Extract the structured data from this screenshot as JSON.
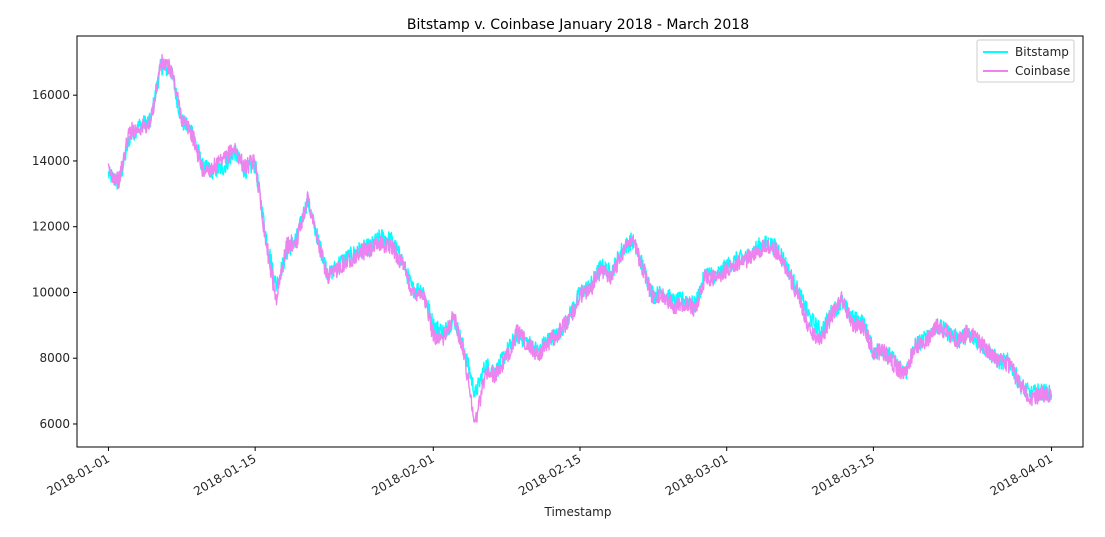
{
  "chart_data": {
    "type": "line",
    "title": "Bitstamp v. Coinbase January 2018 - March 2018",
    "xlabel": "Timestamp",
    "ylabel": "",
    "xlim": [
      "2017-12-29",
      "2018-04-04"
    ],
    "ylim": [
      5300,
      17800
    ],
    "yticks": [
      6000,
      8000,
      10000,
      12000,
      14000,
      16000
    ],
    "xticks": [
      "2018-01-01",
      "2018-01-15",
      "2018-02-01",
      "2018-02-15",
      "2018-03-01",
      "2018-03-15",
      "2018-04-01"
    ],
    "grid": false,
    "legend": "top-right",
    "series": [
      {
        "name": "Bitstamp",
        "color": "#00ffff",
        "x": [
          "2018-01-01",
          "2018-01-02",
          "2018-01-03",
          "2018-01-04",
          "2018-01-05",
          "2018-01-06",
          "2018-01-07",
          "2018-01-08",
          "2018-01-09",
          "2018-01-10",
          "2018-01-11",
          "2018-01-12",
          "2018-01-13",
          "2018-01-14",
          "2018-01-15",
          "2018-01-16",
          "2018-01-17",
          "2018-01-18",
          "2018-01-19",
          "2018-01-20",
          "2018-01-21",
          "2018-01-22",
          "2018-01-23",
          "2018-01-24",
          "2018-01-25",
          "2018-01-26",
          "2018-01-27",
          "2018-01-28",
          "2018-01-29",
          "2018-01-30",
          "2018-01-31",
          "2018-02-01",
          "2018-02-02",
          "2018-02-03",
          "2018-02-04",
          "2018-02-05",
          "2018-02-06",
          "2018-02-07",
          "2018-02-08",
          "2018-02-09",
          "2018-02-10",
          "2018-02-11",
          "2018-02-12",
          "2018-02-13",
          "2018-02-14",
          "2018-02-15",
          "2018-02-16",
          "2018-02-17",
          "2018-02-18",
          "2018-02-19",
          "2018-02-20",
          "2018-02-21",
          "2018-02-22",
          "2018-02-23",
          "2018-02-24",
          "2018-02-25",
          "2018-02-26",
          "2018-02-27",
          "2018-02-28",
          "2018-03-01",
          "2018-03-02",
          "2018-03-03",
          "2018-03-04",
          "2018-03-05",
          "2018-03-06",
          "2018-03-07",
          "2018-03-08",
          "2018-03-09",
          "2018-03-10",
          "2018-03-11",
          "2018-03-12",
          "2018-03-13",
          "2018-03-14",
          "2018-03-15",
          "2018-03-16",
          "2018-03-17",
          "2018-03-18",
          "2018-03-19",
          "2018-03-20",
          "2018-03-21",
          "2018-03-22",
          "2018-03-23",
          "2018-03-24",
          "2018-03-25",
          "2018-03-26",
          "2018-03-27",
          "2018-03-28",
          "2018-03-29",
          "2018-03-30",
          "2018-03-31",
          "2018-04-01"
        ],
        "values": [
          13600,
          13300,
          14700,
          15100,
          15200,
          16900,
          16700,
          15200,
          14900,
          13800,
          13700,
          13800,
          14300,
          13700,
          13900,
          11800,
          10200,
          11200,
          11700,
          12800,
          11600,
          10500,
          10900,
          11100,
          11300,
          11400,
          11700,
          11600,
          11000,
          10100,
          10100,
          9000,
          8800,
          9200,
          8200,
          6900,
          7800,
          7600,
          8200,
          8700,
          8500,
          8200,
          8600,
          8700,
          9300,
          10000,
          10200,
          10800,
          10600,
          11300,
          11600,
          10800,
          9900,
          10000,
          9700,
          9800,
          9600,
          10600,
          10500,
          10800,
          11000,
          11100,
          11400,
          11500,
          11300,
          10600,
          9900,
          9200,
          8800,
          9400,
          9700,
          9200,
          9100,
          8200,
          8300,
          7900,
          7500,
          8400,
          8600,
          9000,
          8800,
          8600,
          8700,
          8500,
          8200,
          7900,
          7900,
          7200,
          6900,
          7000,
          6900
        ]
      },
      {
        "name": "Coinbase",
        "color": "#ee82ee",
        "x": [
          "2018-01-01",
          "2018-01-02",
          "2018-01-03",
          "2018-01-04",
          "2018-01-05",
          "2018-01-06",
          "2018-01-07",
          "2018-01-08",
          "2018-01-09",
          "2018-01-10",
          "2018-01-11",
          "2018-01-12",
          "2018-01-13",
          "2018-01-14",
          "2018-01-15",
          "2018-01-16",
          "2018-01-17",
          "2018-01-18",
          "2018-01-19",
          "2018-01-20",
          "2018-01-21",
          "2018-01-22",
          "2018-01-23",
          "2018-01-24",
          "2018-01-25",
          "2018-01-26",
          "2018-01-27",
          "2018-01-28",
          "2018-01-29",
          "2018-01-30",
          "2018-01-31",
          "2018-02-01",
          "2018-02-02",
          "2018-02-03",
          "2018-02-04",
          "2018-02-05",
          "2018-02-06",
          "2018-02-07",
          "2018-02-08",
          "2018-02-09",
          "2018-02-10",
          "2018-02-11",
          "2018-02-12",
          "2018-02-13",
          "2018-02-14",
          "2018-02-15",
          "2018-02-16",
          "2018-02-17",
          "2018-02-18",
          "2018-02-19",
          "2018-02-20",
          "2018-02-21",
          "2018-02-22",
          "2018-02-23",
          "2018-02-24",
          "2018-02-25",
          "2018-02-26",
          "2018-02-27",
          "2018-02-28",
          "2018-03-01",
          "2018-03-02",
          "2018-03-03",
          "2018-03-04",
          "2018-03-05",
          "2018-03-06",
          "2018-03-07",
          "2018-03-08",
          "2018-03-09",
          "2018-03-10",
          "2018-03-11",
          "2018-03-12",
          "2018-03-13",
          "2018-03-14",
          "2018-03-15",
          "2018-03-16",
          "2018-03-17",
          "2018-03-18",
          "2018-03-19",
          "2018-03-20",
          "2018-03-21",
          "2018-03-22",
          "2018-03-23",
          "2018-03-24",
          "2018-03-25",
          "2018-03-26",
          "2018-03-27",
          "2018-03-28",
          "2018-03-29",
          "2018-03-30",
          "2018-03-31",
          "2018-04-01"
        ],
        "values": [
          13700,
          13400,
          14900,
          15000,
          15100,
          17000,
          16800,
          15300,
          14800,
          13700,
          13800,
          14000,
          14400,
          13800,
          14000,
          11600,
          9800,
          11400,
          11600,
          12900,
          11500,
          10400,
          10800,
          11000,
          11200,
          11300,
          11500,
          11400,
          10900,
          10000,
          10000,
          8700,
          8600,
          9300,
          8000,
          6000,
          7600,
          7500,
          8000,
          8800,
          8400,
          8100,
          8500,
          8800,
          9200,
          9900,
          10100,
          10700,
          10500,
          11200,
          11700,
          10700,
          9800,
          9900,
          9600,
          9700,
          9500,
          10500,
          10400,
          10700,
          10900,
          11000,
          11300,
          11400,
          11200,
          10500,
          9700,
          8800,
          8600,
          9300,
          9800,
          9000,
          9000,
          8200,
          8200,
          7800,
          7500,
          8400,
          8500,
          9000,
          8800,
          8500,
          8800,
          8500,
          8200,
          7900,
          7800,
          7200,
          6800,
          6900,
          6900
        ]
      }
    ]
  }
}
